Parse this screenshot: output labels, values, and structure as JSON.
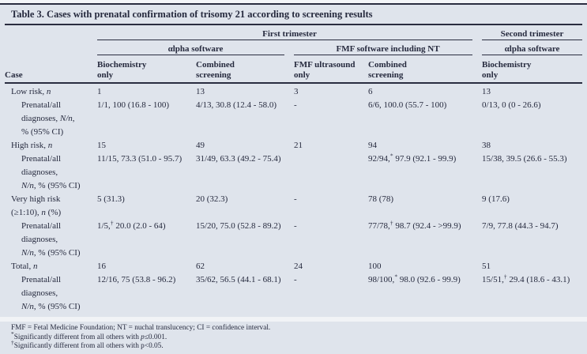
{
  "title": "Table 3. Cases with prenatal confirmation of trisomy 21 according to screening results",
  "colors": {
    "background": "#dfe4ec",
    "text": "#262a3e",
    "rule": "#2a2d40"
  },
  "header": {
    "trimester_groups": [
      {
        "label": "First trimester"
      },
      {
        "label": "Second trimester"
      }
    ],
    "software_groups": [
      {
        "label": "αlpha software"
      },
      {
        "label": "FMF software including NT"
      },
      {
        "label": "αlpha software"
      }
    ],
    "columns": [
      "Case",
      "Biochemistry\nonly",
      "Combined\nscreening",
      "FMF ultrasound\nonly",
      "Combined\nscreening",
      "Biochemistry\nonly"
    ]
  },
  "rows": [
    {
      "type": "group",
      "cells": [
        "Low risk, n",
        "1",
        "13",
        "3",
        "6",
        "13"
      ]
    },
    {
      "type": "sub",
      "cells": [
        "Prenatal/all\ndiagnoses, N/n,\n% (95% CI)",
        "1/1, 100 (16.8 - 100)",
        "4/13, 30.8 (12.4 - 58.0)",
        "-",
        "6/6, 100.0 (55.7 - 100)",
        "0/13, 0 (0 - 26.6)"
      ]
    },
    {
      "type": "group",
      "cells": [
        "High risk, n",
        "15",
        "49",
        "21",
        "94",
        "38"
      ]
    },
    {
      "type": "sub",
      "cells": [
        "Prenatal/all\ndiagnoses,\nN/n, % (95% CI)",
        "11/15, 73.3 (51.0 - 95.7)",
        "31/49, 63.3 (49.2 - 75.4)",
        "",
        "92/94,* 97.9 (92.1 - 99.9)",
        "15/38, 39.5 (26.6 - 55.3)"
      ]
    },
    {
      "type": "group",
      "cells": [
        "Very high risk\n(≥1:10), n (%)",
        "5 (31.3)",
        "20 (32.3)",
        "-",
        "78 (78)",
        "9 (17.6)"
      ]
    },
    {
      "type": "sub",
      "cells": [
        "Prenatal/all\ndiagnoses,\nN/n, % (95% CI)",
        "1/5,† 20.0 (2.0 - 64)",
        "15/20, 75.0 (52.8 - 89.2)",
        "-",
        "77/78,† 98.7 (92.4 - >99.9)",
        "7/9, 77.8 (44.3 - 94.7)"
      ]
    },
    {
      "type": "group",
      "cells": [
        "Total, n",
        "16",
        "62",
        "24",
        "100",
        "51"
      ]
    },
    {
      "type": "sub",
      "cells": [
        "Prenatal/all\ndiagnoses,\nN/n, % (95% CI)",
        "12/16, 75 (53.8 - 96.2)",
        "35/62, 56.5 (44.1 - 68.1)",
        "-",
        "98/100,* 98.0 (92.6 - 99.9)",
        "15/51,† 29.4 (18.6 - 43.1)"
      ]
    }
  ],
  "footnotes": [
    "FMF = Fetal Medicine Foundation; NT = nuchal translucency; CI = confidence interval.",
    "*Significantly different from all others with p≤0.001.",
    "†Significantly different from all others with p<0.05."
  ]
}
